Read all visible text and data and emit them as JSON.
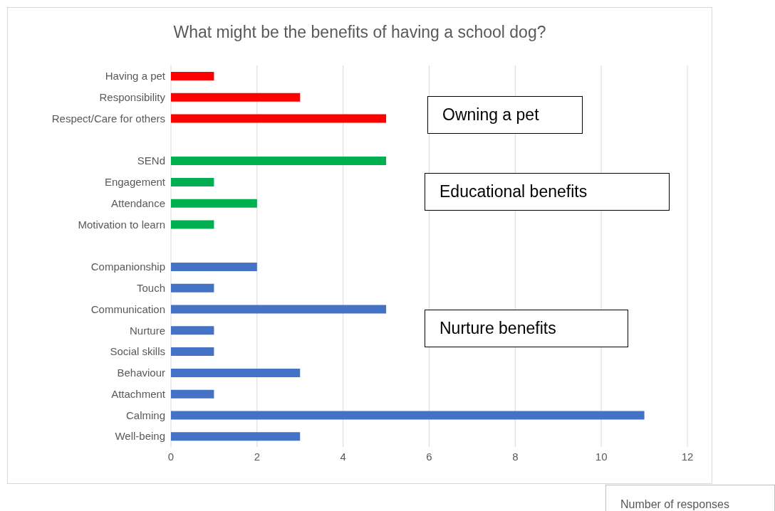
{
  "chart_data": {
    "type": "bar",
    "orientation": "horizontal",
    "title": "What might be the benefits of having a school dog?",
    "xlabel": "Number of responses",
    "categories": [
      "Having a pet",
      "Responsibility",
      "Respect/Care for others",
      null,
      "SENd",
      "Engagement",
      "Attendance",
      "Motivation to learn",
      null,
      "Companionship",
      "Touch",
      "Communication",
      "Nurture",
      "Social skills",
      "Behaviour",
      "Attachment",
      "Calming",
      "Well-being"
    ],
    "values": [
      1,
      3,
      5,
      null,
      5,
      1,
      2,
      1,
      null,
      2,
      1,
      5,
      1,
      1,
      3,
      1,
      11,
      3
    ],
    "colors": [
      "#ff0000",
      "#ff0000",
      "#ff0000",
      null,
      "#00b050",
      "#00b050",
      "#00b050",
      "#00b050",
      null,
      "#4472c4",
      "#4472c4",
      "#4472c4",
      "#4472c4",
      "#4472c4",
      "#4472c4",
      "#4472c4",
      "#4472c4",
      "#4472c4"
    ],
    "xlim": [
      0,
      12
    ],
    "xticks": [
      0,
      2,
      4,
      6,
      8,
      10,
      12
    ],
    "grid": "x",
    "legend": false,
    "annotations": [
      "Owning a pet",
      "Educational benefits",
      "Nurture benefits"
    ]
  }
}
